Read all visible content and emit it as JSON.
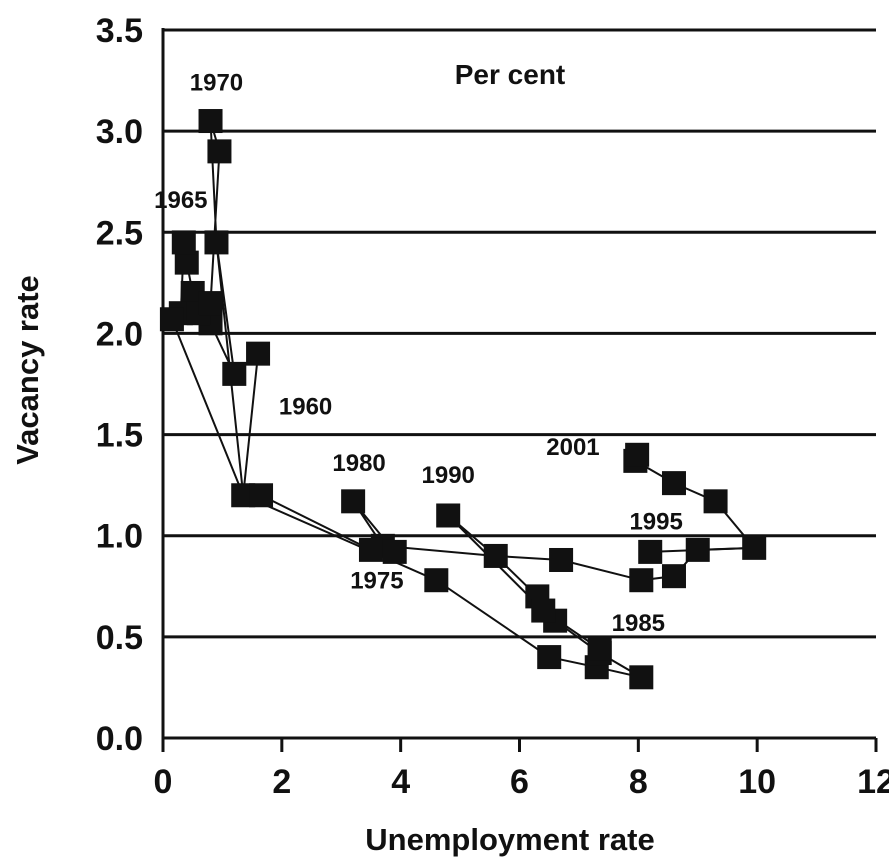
{
  "chart_data": {
    "type": "scatter",
    "title": "Per cent",
    "xlabel": "Unemployment rate",
    "ylabel": "Vacancy rate",
    "xlim": [
      0,
      12
    ],
    "ylim": [
      0,
      3.5
    ],
    "xticks": [
      0,
      2,
      4,
      6,
      8,
      10,
      12
    ],
    "yticks": [
      0,
      0.5,
      1.0,
      1.5,
      2.0,
      2.5,
      3.0,
      3.5
    ],
    "xtick_labels": [
      "0",
      "2",
      "4",
      "6",
      "8",
      "10",
      "12"
    ],
    "ytick_labels": [
      "0.0",
      "0.5",
      "1.0",
      "1.5",
      "2.0",
      "2.5",
      "3.0",
      "3.5"
    ],
    "grid": "horizontal",
    "marker": "square",
    "color": "#111111",
    "series": [
      {
        "points": [
          [
            1.6,
            1.9
          ],
          [
            1.2,
            1.8
          ],
          [
            0.8,
            2.05
          ],
          [
            0.5,
            2.2
          ],
          [
            0.4,
            2.35
          ],
          [
            0.35,
            2.45
          ],
          [
            0.3,
            2.1
          ],
          [
            0.15,
            2.07
          ],
          [
            0.6,
            2.1
          ],
          [
            0.8,
            2.15
          ],
          [
            0.95,
            2.9
          ],
          [
            0.8,
            3.05
          ],
          [
            0.9,
            2.45
          ],
          [
            1.35,
            1.2
          ],
          [
            1.65,
            1.2
          ],
          [
            3.7,
            0.95
          ],
          [
            3.5,
            0.93
          ],
          [
            3.2,
            1.17
          ],
          [
            3.9,
            0.92
          ],
          [
            4.6,
            0.78
          ],
          [
            6.5,
            0.4
          ],
          [
            7.3,
            0.35
          ],
          [
            8.05,
            0.3
          ],
          [
            7.35,
            0.42
          ],
          [
            6.6,
            0.58
          ],
          [
            6.3,
            0.7
          ],
          [
            5.6,
            0.9
          ],
          [
            4.8,
            1.1
          ],
          [
            6.4,
            0.63
          ],
          [
            7.35,
            0.44
          ],
          [
            6.7,
            0.88
          ],
          [
            8.05,
            0.78
          ],
          [
            8.6,
            0.8
          ],
          [
            8.2,
            0.92
          ],
          [
            9.0,
            0.93
          ],
          [
            9.95,
            0.94
          ],
          [
            9.3,
            1.17
          ],
          [
            8.6,
            1.26
          ],
          [
            7.95,
            1.37
          ],
          [
            7.98,
            1.4
          ]
        ],
        "path": [
          [
            1.6,
            1.9
          ],
          [
            1.2,
            1.8
          ],
          [
            0.8,
            2.05
          ],
          [
            0.5,
            2.2
          ],
          [
            0.4,
            2.35
          ],
          [
            0.35,
            2.45
          ],
          [
            0.3,
            2.1
          ],
          [
            0.15,
            2.07
          ],
          [
            0.6,
            2.1
          ],
          [
            0.8,
            2.15
          ],
          [
            0.95,
            2.9
          ],
          [
            0.8,
            3.05
          ],
          [
            0.9,
            2.45
          ],
          [
            1.35,
            1.2
          ],
          [
            1.65,
            1.2
          ],
          [
            3.5,
            0.93
          ],
          [
            3.9,
            0.92
          ],
          [
            3.2,
            1.17
          ],
          [
            3.7,
            0.95
          ],
          [
            5.6,
            0.9
          ],
          [
            6.7,
            0.88
          ],
          [
            8.05,
            0.78
          ],
          [
            8.6,
            0.8
          ],
          [
            9.0,
            0.93
          ],
          [
            9.95,
            0.94
          ],
          [
            9.3,
            1.17
          ],
          [
            8.6,
            1.26
          ],
          [
            7.95,
            1.37
          ]
        ],
        "path2": [
          [
            0.15,
            2.07
          ],
          [
            1.35,
            1.2
          ],
          [
            4.6,
            0.78
          ],
          [
            6.5,
            0.4
          ],
          [
            7.3,
            0.35
          ],
          [
            8.05,
            0.3
          ],
          [
            7.35,
            0.42
          ],
          [
            6.6,
            0.58
          ],
          [
            6.3,
            0.7
          ],
          [
            5.6,
            0.9
          ],
          [
            4.8,
            1.1
          ],
          [
            6.4,
            0.63
          ],
          [
            7.35,
            0.44
          ]
        ],
        "path3": [
          [
            0.9,
            2.45
          ],
          [
            1.2,
            1.8
          ],
          [
            1.6,
            1.9
          ],
          [
            1.35,
            1.2
          ]
        ],
        "path4": [
          [
            8.2,
            0.92
          ],
          [
            9.95,
            0.94
          ]
        ]
      }
    ],
    "annotations": [
      {
        "text": "1970",
        "x": 0.9,
        "y": 3.2
      },
      {
        "text": "1965",
        "x": 0.3,
        "y": 2.62
      },
      {
        "text": "1960",
        "x": 2.4,
        "y": 1.6
      },
      {
        "text": "1980",
        "x": 3.3,
        "y": 1.32
      },
      {
        "text": "1975",
        "x": 3.6,
        "y": 0.74
      },
      {
        "text": "1990",
        "x": 4.8,
        "y": 1.26
      },
      {
        "text": "2001",
        "x": 6.9,
        "y": 1.4
      },
      {
        "text": "1995",
        "x": 8.3,
        "y": 1.03
      },
      {
        "text": "1985",
        "x": 8.0,
        "y": 0.53
      }
    ]
  }
}
